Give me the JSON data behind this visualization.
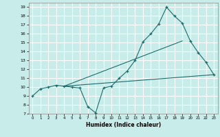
{
  "title": "",
  "xlabel": "Humidex (Indice chaleur)",
  "bg_color": "#c8ece9",
  "grid_color": "#ffffff",
  "line_color": "#1a6b6b",
  "xlim": [
    -0.5,
    23.5
  ],
  "ylim": [
    7,
    19.5
  ],
  "xticks": [
    0,
    1,
    2,
    3,
    4,
    5,
    6,
    7,
    8,
    9,
    10,
    11,
    12,
    13,
    14,
    15,
    16,
    17,
    18,
    19,
    20,
    21,
    22,
    23
  ],
  "yticks": [
    7,
    8,
    9,
    10,
    11,
    12,
    13,
    14,
    15,
    16,
    17,
    18,
    19
  ],
  "line1_x": [
    0,
    1,
    2,
    3,
    4,
    5,
    6,
    7,
    8,
    9,
    10,
    11,
    12,
    13,
    14,
    15,
    16,
    17,
    18,
    19,
    20,
    21,
    22,
    23
  ],
  "line1_y": [
    9.0,
    9.8,
    10.0,
    10.2,
    10.1,
    10.0,
    9.9,
    7.8,
    7.1,
    9.9,
    10.1,
    11.0,
    11.8,
    13.0,
    15.1,
    16.0,
    17.1,
    19.0,
    18.0,
    17.2,
    15.2,
    13.9,
    12.8,
    11.4
  ],
  "line2_x": [
    4,
    23
  ],
  "line2_y": [
    10.1,
    11.4
  ],
  "line3_x": [
    4,
    19
  ],
  "line3_y": [
    10.1,
    15.2
  ]
}
